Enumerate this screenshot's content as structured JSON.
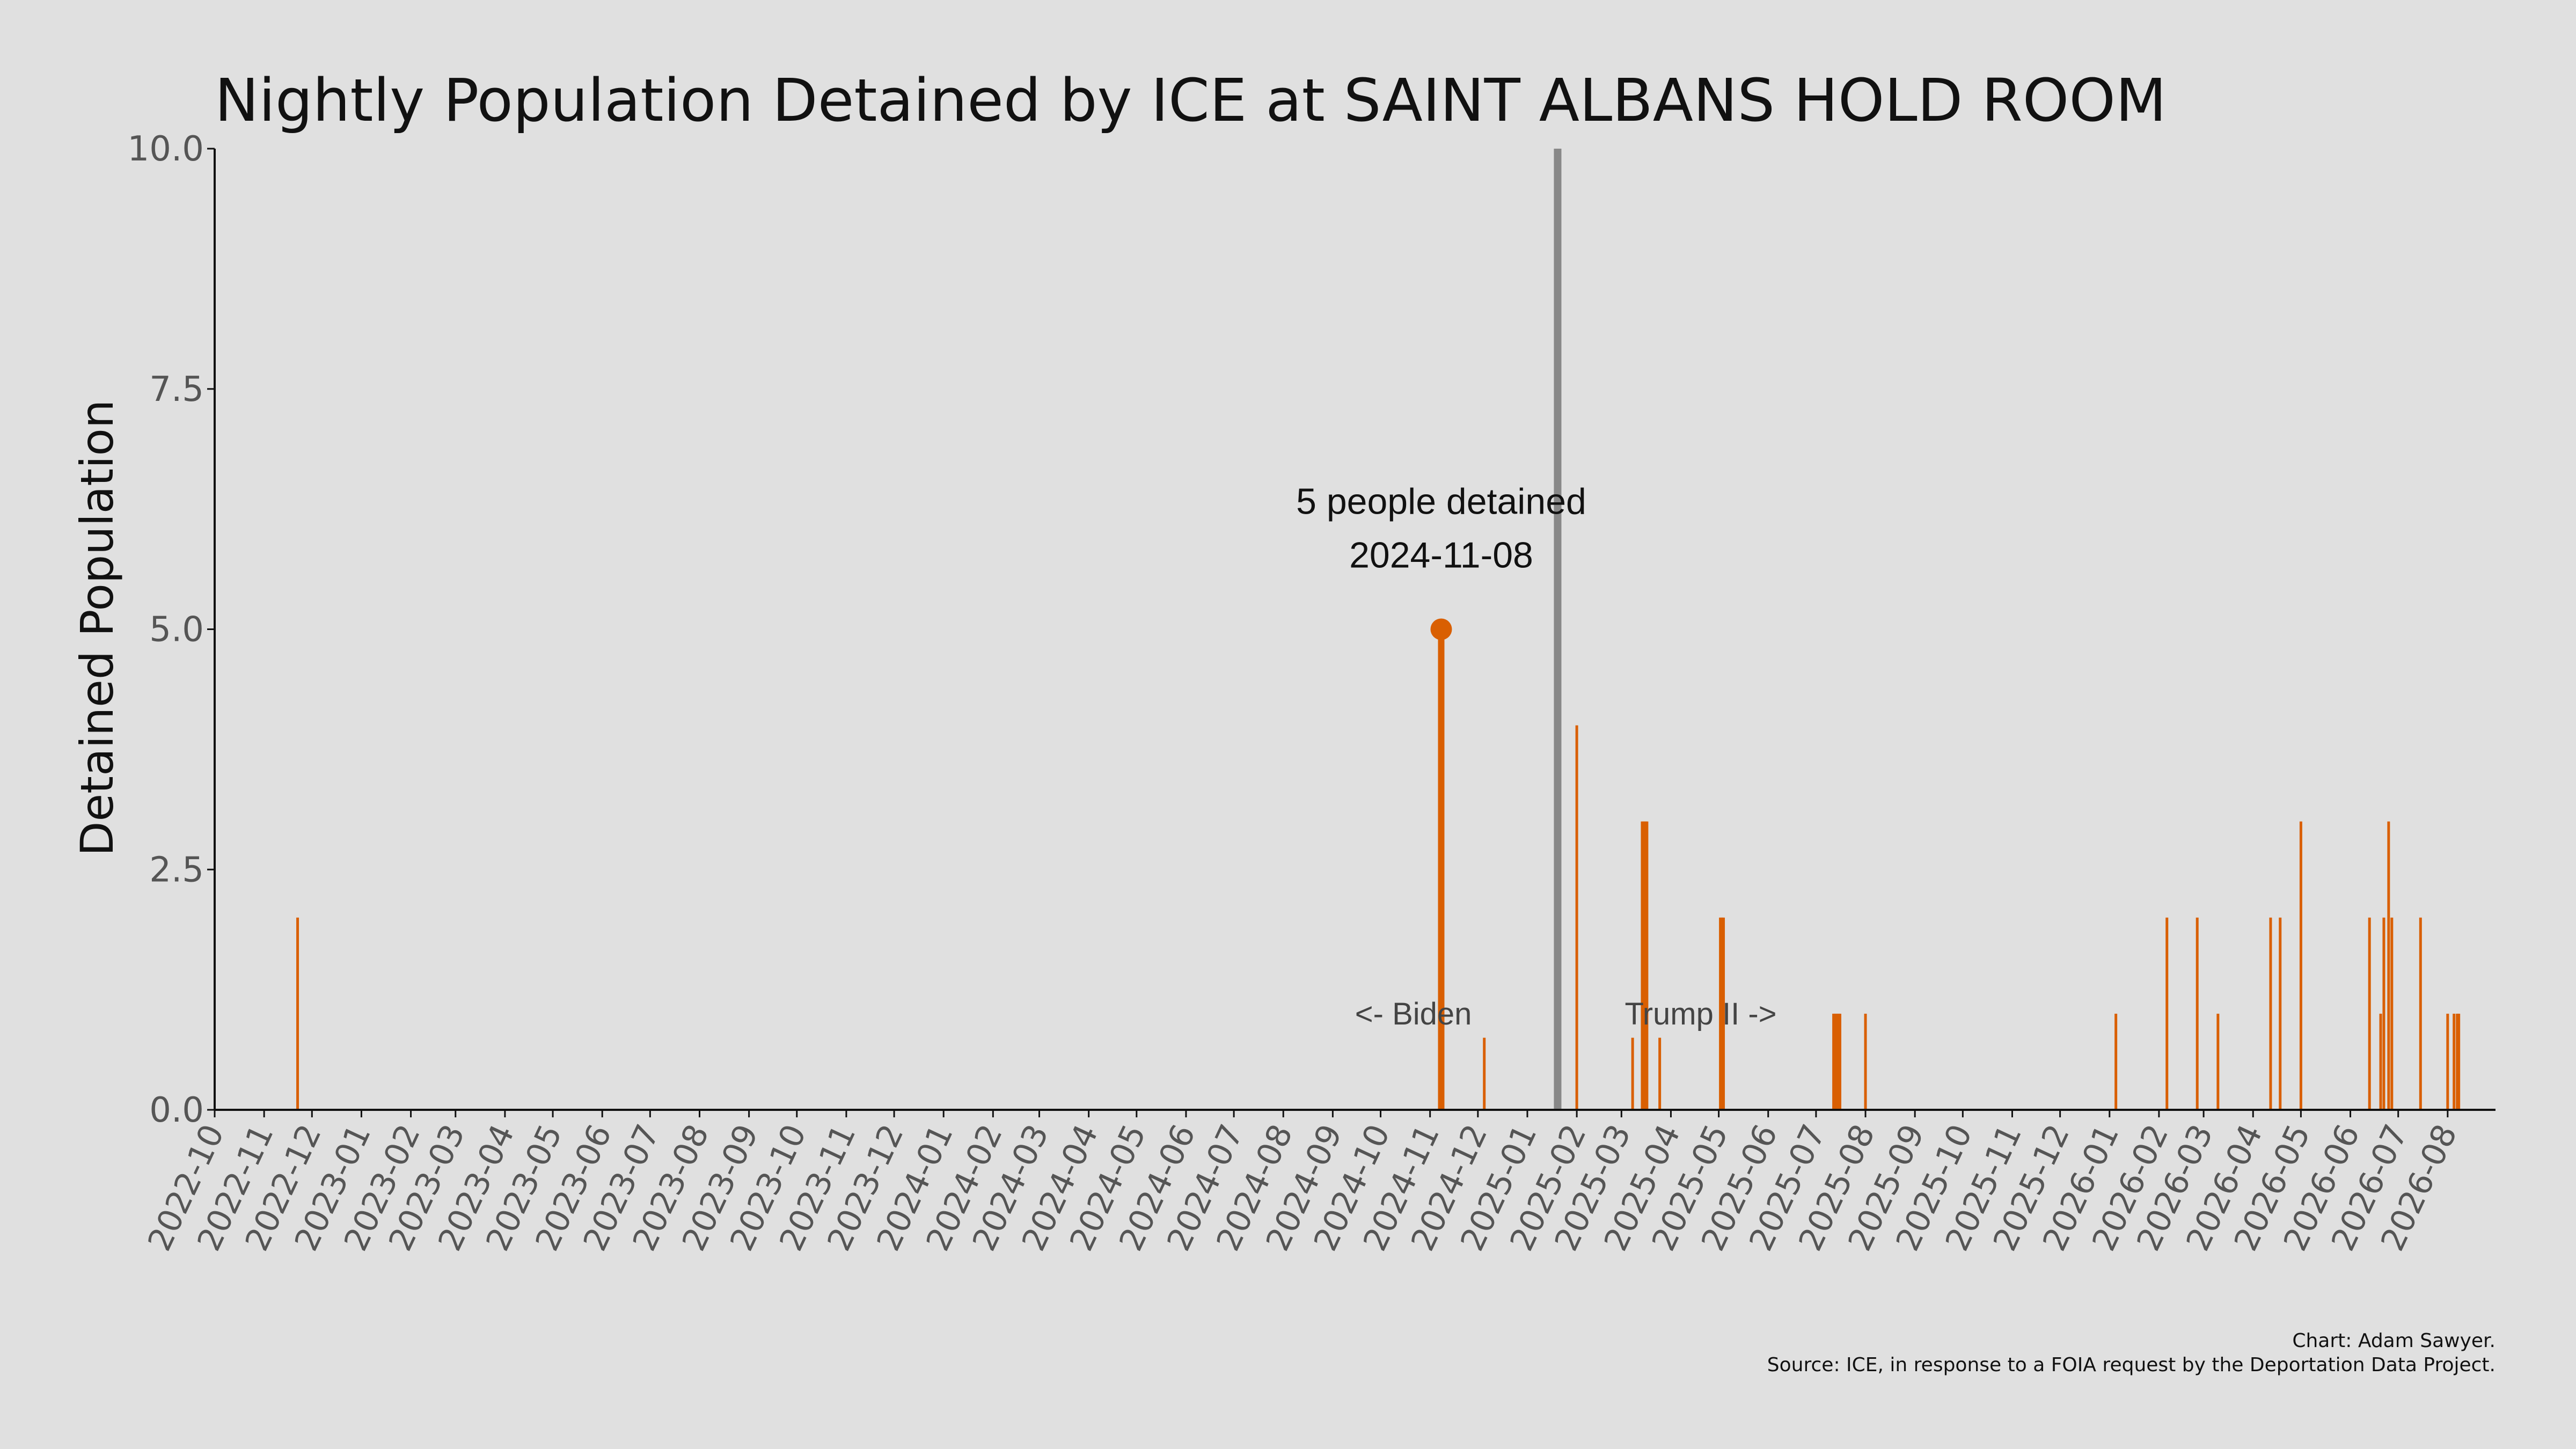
{
  "chart_data": {
    "type": "bar",
    "title": "Nightly Population Detained by ICE at SAINT ALBANS HOLD ROOM",
    "ylabel": "Detained Population",
    "xlabel": "",
    "ylim": [
      0,
      10
    ],
    "yticks": [
      "0.0",
      "2.5",
      "5.0",
      "7.5",
      "10.0"
    ],
    "xlim": [
      "2022-10-01",
      "2026-08-31"
    ],
    "xticks": [
      "2022-10",
      "2022-11",
      "2022-12",
      "2023-01",
      "2023-02",
      "2023-03",
      "2023-04",
      "2023-05",
      "2023-06",
      "2023-07",
      "2023-08",
      "2023-09",
      "2023-10",
      "2023-11",
      "2023-12",
      "2024-01",
      "2024-02",
      "2024-03",
      "2024-04",
      "2024-05",
      "2024-06",
      "2024-07",
      "2024-08",
      "2024-09",
      "2024-10",
      "2024-11",
      "2024-12",
      "2025-01",
      "2025-02",
      "2025-03",
      "2025-04",
      "2025-05",
      "2025-06",
      "2025-07",
      "2025-08",
      "2025-09",
      "2025-10",
      "2025-11",
      "2025-12",
      "2026-01",
      "2026-02",
      "2026-03",
      "2026-04",
      "2026-05",
      "2026-06",
      "2026-07",
      "2026-08"
    ],
    "grid": false,
    "bar_color": "#d95f02",
    "divider_color": "#888888",
    "divider_date": "2025-01-20",
    "era_left_label": "<- Biden",
    "era_right_label": "Trump II ->",
    "highlight": {
      "date": "2024-11-08",
      "value": 5,
      "line1": "5 people detained",
      "line2": "2024-11-08"
    },
    "points": [
      {
        "date": "2022-11-22",
        "value": 2
      },
      {
        "date": "2024-11-08",
        "value": 5
      },
      {
        "date": "2024-12-05",
        "value": 0.75
      },
      {
        "date": "2025-02-01",
        "value": 4
      },
      {
        "date": "2025-03-08",
        "value": 0.75
      },
      {
        "date": "2025-03-14",
        "value": 3
      },
      {
        "date": "2025-03-15",
        "value": 3
      },
      {
        "date": "2025-03-16",
        "value": 3
      },
      {
        "date": "2025-03-17",
        "value": 3
      },
      {
        "date": "2025-03-25",
        "value": 0.75
      },
      {
        "date": "2025-05-02",
        "value": 2
      },
      {
        "date": "2025-05-03",
        "value": 2
      },
      {
        "date": "2025-05-04",
        "value": 2
      },
      {
        "date": "2025-07-12",
        "value": 1
      },
      {
        "date": "2025-07-13",
        "value": 1
      },
      {
        "date": "2025-07-14",
        "value": 1
      },
      {
        "date": "2025-07-15",
        "value": 1
      },
      {
        "date": "2025-07-16",
        "value": 1
      },
      {
        "date": "2025-08-01",
        "value": 1
      },
      {
        "date": "2026-01-05",
        "value": 1
      },
      {
        "date": "2026-02-06",
        "value": 2
      },
      {
        "date": "2026-02-25",
        "value": 2
      },
      {
        "date": "2026-03-10",
        "value": 1
      },
      {
        "date": "2026-04-12",
        "value": 2
      },
      {
        "date": "2026-04-18",
        "value": 2
      },
      {
        "date": "2026-05-01",
        "value": 3
      },
      {
        "date": "2026-06-13",
        "value": 2
      },
      {
        "date": "2026-06-20",
        "value": 1
      },
      {
        "date": "2026-06-22",
        "value": 2
      },
      {
        "date": "2026-06-25",
        "value": 3
      },
      {
        "date": "2026-06-27",
        "value": 2
      },
      {
        "date": "2026-07-15",
        "value": 2
      },
      {
        "date": "2026-08-01",
        "value": 1
      },
      {
        "date": "2026-08-05",
        "value": 1
      },
      {
        "date": "2026-08-07",
        "value": 1
      },
      {
        "date": "2026-08-08",
        "value": 1
      }
    ],
    "credits": {
      "line1": "Chart: Adam Sawyer.",
      "line2": "Source: ICE, in response to a FOIA request by the Deportation Data Project."
    }
  }
}
